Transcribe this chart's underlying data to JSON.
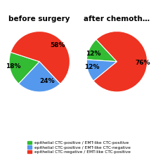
{
  "pie1_title": "before surgery",
  "pie2_title": "after chemoth…",
  "pie1_values": [
    18,
    24,
    58
  ],
  "pie2_values": [
    12,
    12,
    76
  ],
  "pie1_labels": [
    "18%",
    "24%",
    "58%"
  ],
  "pie2_labels": [
    "12%",
    "12%",
    "76%"
  ],
  "colors": [
    "#33bb33",
    "#5599ee",
    "#ee3322"
  ],
  "legend_labels": [
    "epithelial CTC-positive / EMT-like CTC-positive",
    "epithelial CTC-positive / EMT-like CTC-negative",
    "epithelial CTC-negative / EMT-like CTC-positive"
  ],
  "legend_colors": [
    "#33bb33",
    "#5599ee",
    "#ee3322"
  ],
  "background_color": "#ffffff",
  "label_fontsize": 6.5,
  "title_fontsize": 7.5,
  "pie1_startangle": 162,
  "pie2_startangle": 133
}
